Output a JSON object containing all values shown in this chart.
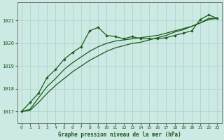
{
  "title": "Graphe pression niveau de la mer (hPa)",
  "background_color": "#cce9e4",
  "plot_bg_color": "#cce9e4",
  "grid_color": "#aad4cc",
  "line_color": "#1a5c1a",
  "marker_color": "#1a5c1a",
  "xlim": [
    -0.5,
    23.5
  ],
  "ylim": [
    1016.5,
    1021.8
  ],
  "yticks": [
    1017,
    1018,
    1019,
    1020,
    1021
  ],
  "xticks": [
    0,
    1,
    2,
    3,
    4,
    5,
    6,
    7,
    8,
    9,
    10,
    11,
    12,
    13,
    14,
    15,
    16,
    17,
    18,
    19,
    20,
    21,
    22,
    23
  ],
  "series1_marked": [
    1017.0,
    1017.4,
    1017.8,
    1018.5,
    1018.85,
    1019.3,
    1019.6,
    1019.85,
    1020.55,
    1020.7,
    1020.35,
    1020.3,
    1020.2,
    1020.3,
    1020.2,
    1020.2,
    1020.2,
    1020.25,
    1020.35,
    1020.45,
    1020.55,
    1021.05,
    1021.25,
    1021.1
  ],
  "series2_smooth": [
    1017.0,
    1017.1,
    1017.6,
    1018.1,
    1018.45,
    1018.85,
    1019.15,
    1019.4,
    1019.65,
    1019.85,
    1020.0,
    1020.1,
    1020.15,
    1020.2,
    1020.25,
    1020.3,
    1020.35,
    1020.45,
    1020.55,
    1020.65,
    1020.75,
    1020.9,
    1021.1,
    1021.1
  ],
  "series3_smooth": [
    1017.0,
    1017.05,
    1017.4,
    1017.8,
    1018.15,
    1018.45,
    1018.75,
    1019.0,
    1019.25,
    1019.45,
    1019.65,
    1019.8,
    1019.9,
    1020.0,
    1020.05,
    1020.15,
    1020.25,
    1020.35,
    1020.5,
    1020.6,
    1020.75,
    1020.9,
    1021.05,
    1021.1
  ]
}
